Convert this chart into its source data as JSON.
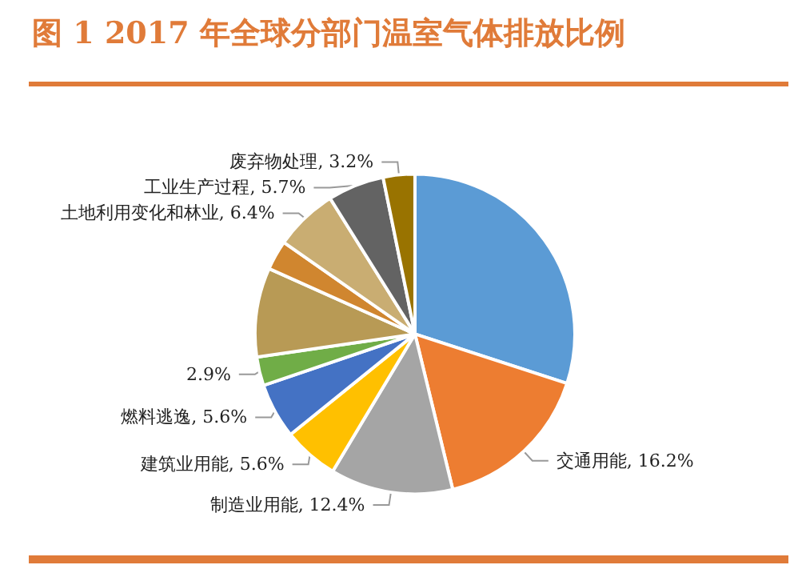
{
  "chart_data": {
    "type": "pie",
    "title": "图 1 2017 年全球分部门温室气体排放比例",
    "categories": [
      null,
      "交通用能",
      "制造业用能",
      "建筑业用能",
      "燃料逃逸",
      null,
      null,
      null,
      "土地利用变化和林业",
      "工业生产过程",
      "废弃物处理"
    ],
    "values": [
      30.0,
      16.2,
      12.4,
      5.6,
      5.6,
      2.9,
      9.0,
      3.0,
      6.4,
      5.7,
      3.2
    ],
    "value_labels": [
      null,
      "16.2%",
      "12.4%",
      "5.6%",
      "5.6%",
      "2.9%",
      null,
      null,
      "6.4%",
      "5.7%",
      "3.2%"
    ],
    "colors": [
      "#5b9bd5",
      "#ed7d31",
      "#a5a5a5",
      "#ffc000",
      "#4472c4",
      "#70ad47",
      "#b89a55",
      "#d0862f",
      "#c9ad72",
      "#636363",
      "#997300"
    ],
    "legend": false
  }
}
